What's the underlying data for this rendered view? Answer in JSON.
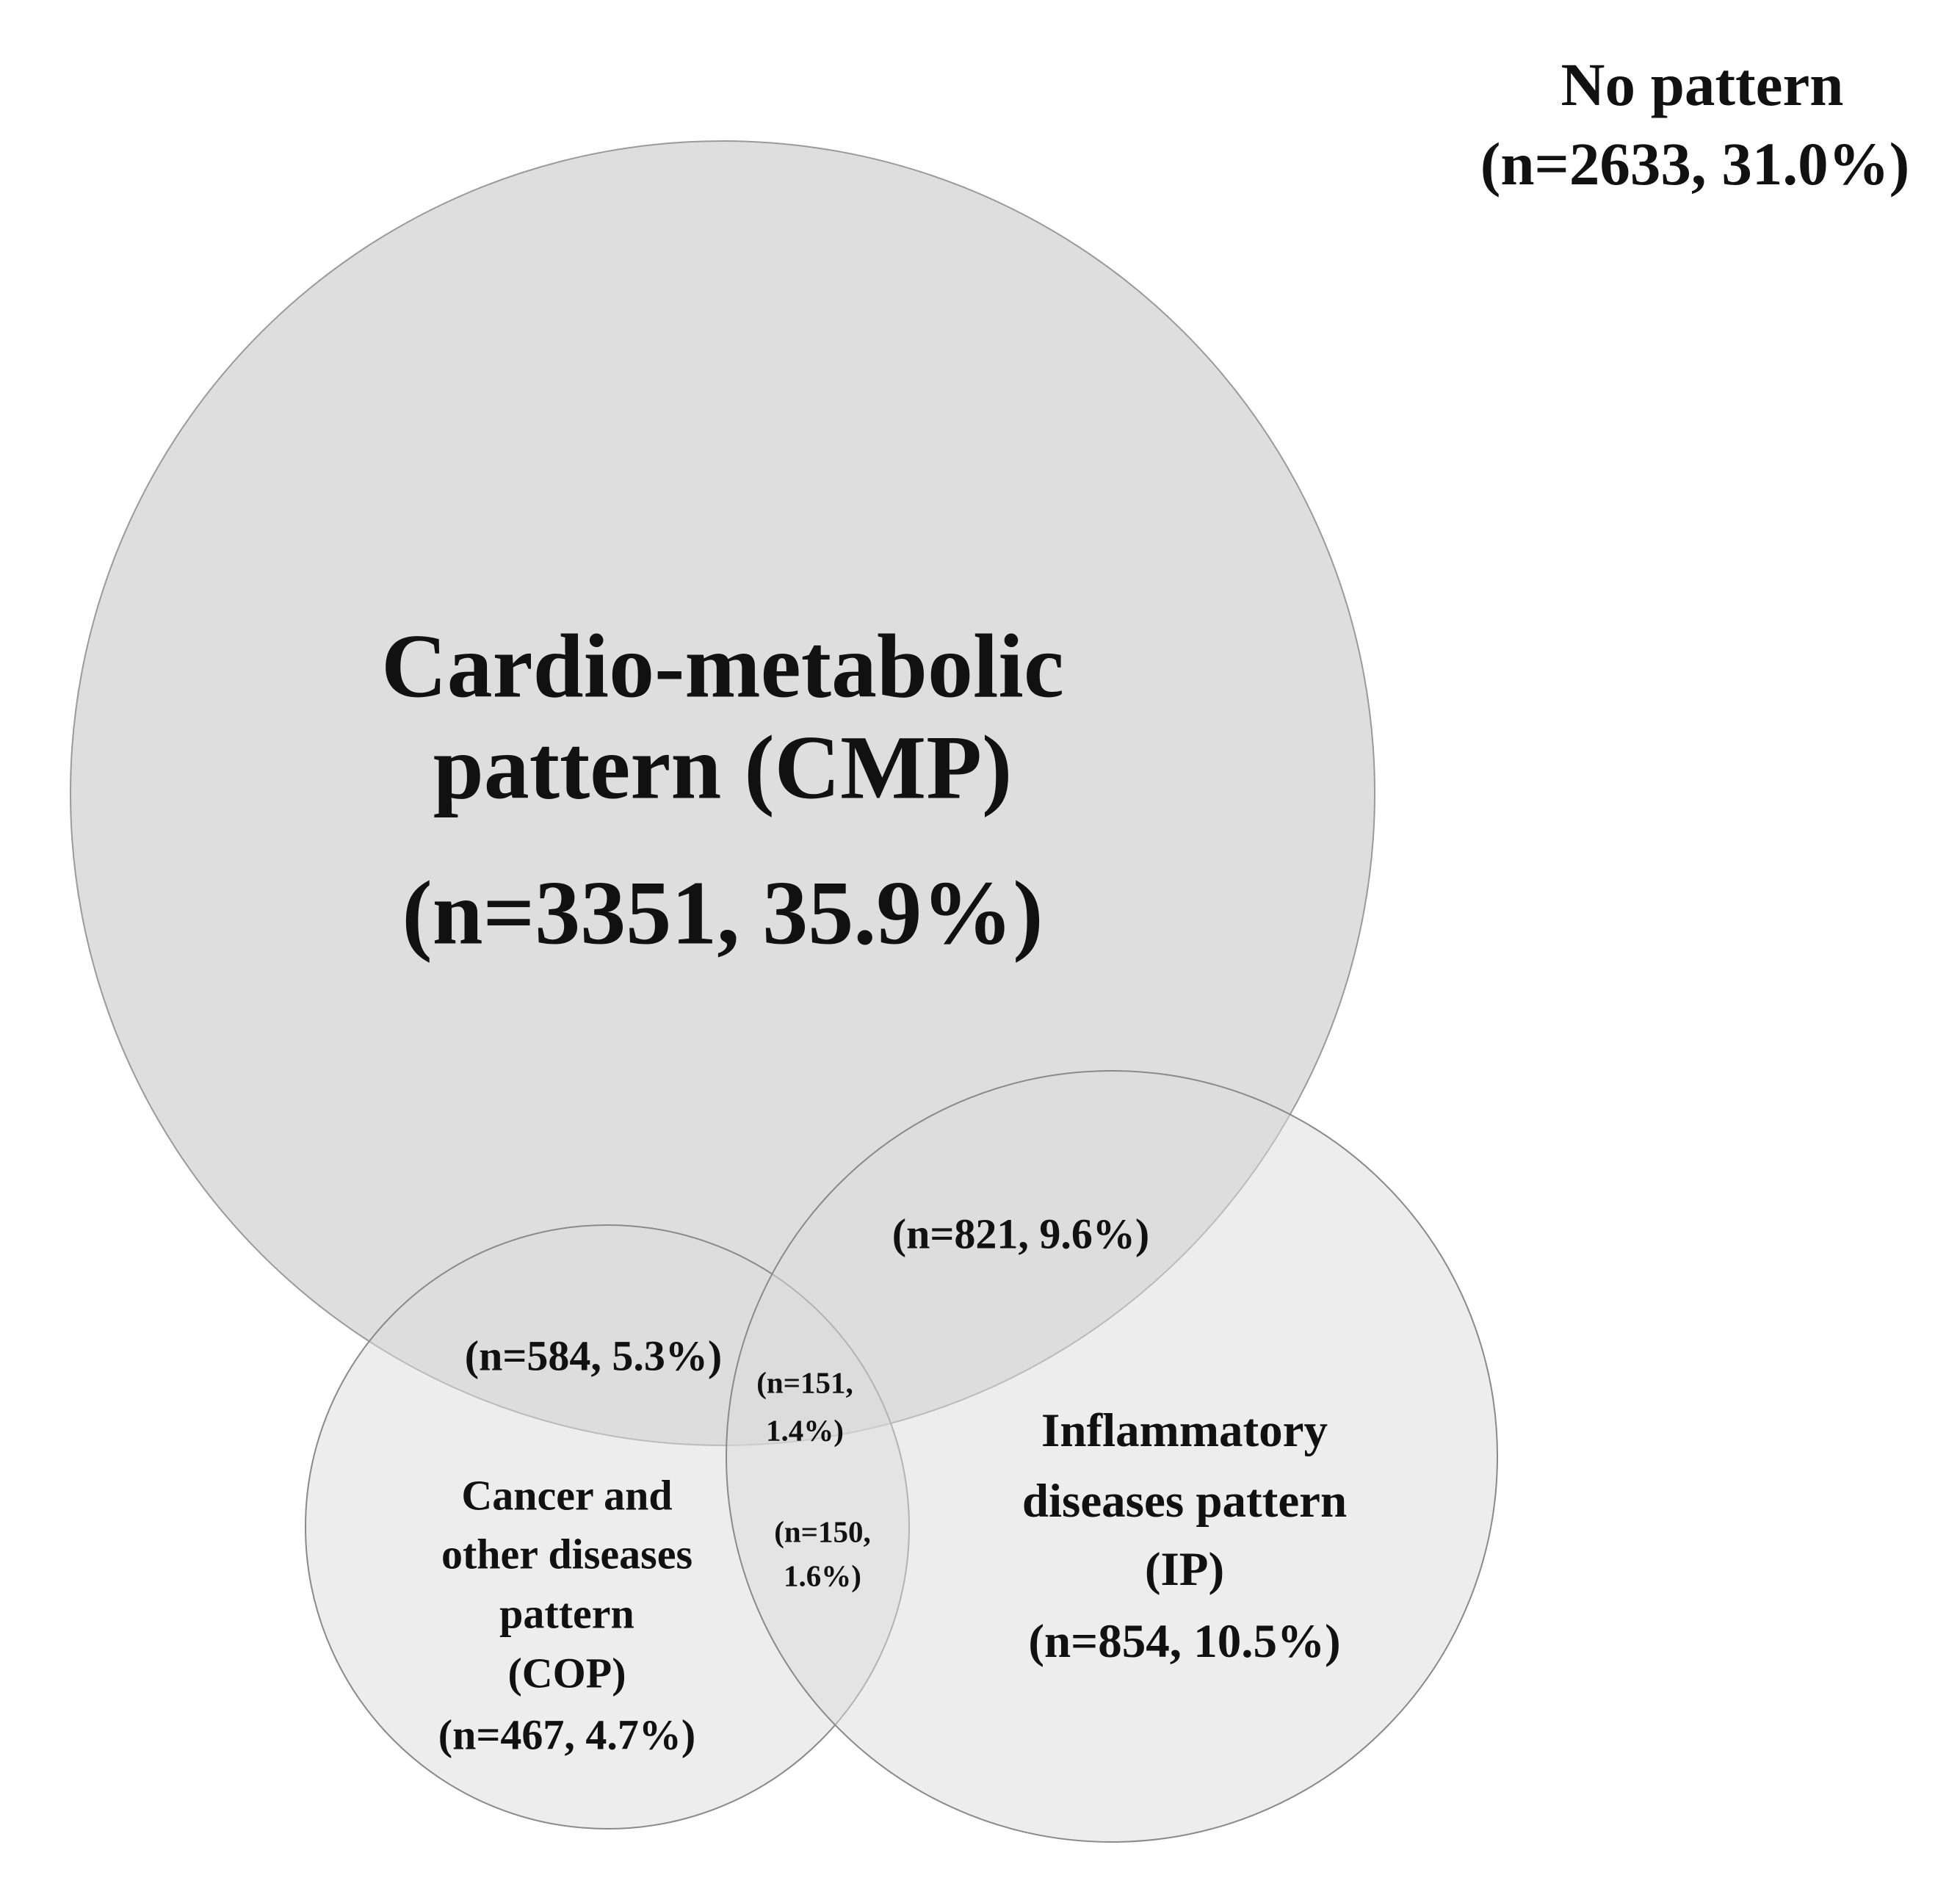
{
  "outside": {
    "title": "No pattern",
    "count": "(n=2633, 31.0%)"
  },
  "sets": [
    {
      "label_lines": [
        "Cardio-metabolic",
        "pattern (CMP)"
      ],
      "count": "(n=3351, 35.9%)"
    },
    {
      "label_lines": [
        "Cancer and",
        "other diseases",
        "pattern",
        "(COP)"
      ],
      "count": "(n=467, 4.7%)"
    },
    {
      "label_lines": [
        "Inflammatory",
        "diseases pattern",
        "(IP)"
      ],
      "count": "(n=854, 10.5%)"
    }
  ],
  "intersections": [
    {
      "label_lines": [
        "(n=821, 9.6%)"
      ]
    },
    {
      "label_lines": [
        "(n=584, 5.3%)"
      ]
    },
    {
      "label_lines": [
        "(n=151,",
        "1.4%)"
      ]
    },
    {
      "label_lines": [
        "(n=150,",
        "1.6%)"
      ]
    }
  ]
}
